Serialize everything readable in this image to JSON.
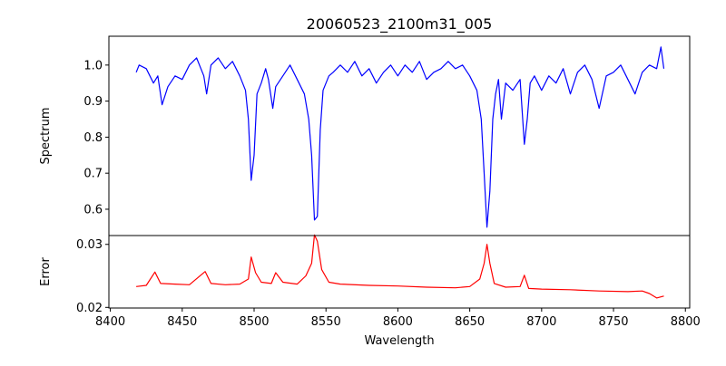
{
  "chart_data": [
    {
      "type": "line",
      "title": "20060523_2100m31_005",
      "xlabel": "",
      "ylabel": "Spectrum",
      "xlim": [
        8399,
        8803
      ],
      "ylim": [
        0.527,
        1.08
      ],
      "yticks": [
        "0.6",
        "0.7",
        "0.8",
        "0.9",
        "1.0"
      ],
      "ytick_values": [
        0.6,
        0.7,
        0.8,
        0.9,
        1.0
      ],
      "color": "#0000ff",
      "x": [
        8418,
        8420,
        8425,
        8430,
        8433,
        8436,
        8440,
        8445,
        8450,
        8455,
        8460,
        8465,
        8467,
        8470,
        8475,
        8480,
        8485,
        8490,
        8494,
        8496,
        8498,
        8500,
        8502,
        8505,
        8508,
        8510,
        8513,
        8515,
        8520,
        8525,
        8530,
        8535,
        8538,
        8540,
        8542,
        8544,
        8546,
        8548,
        8552,
        8555,
        8560,
        8565,
        8570,
        8575,
        8580,
        8585,
        8590,
        8595,
        8600,
        8605,
        8610,
        8615,
        8620,
        8625,
        8630,
        8635,
        8640,
        8645,
        8650,
        8655,
        8658,
        8660,
        8662,
        8664,
        8666,
        8668,
        8670,
        8672,
        8675,
        8680,
        8685,
        8688,
        8690,
        8692,
        8695,
        8700,
        8705,
        8710,
        8715,
        8720,
        8725,
        8730,
        8735,
        8740,
        8745,
        8750,
        8755,
        8760,
        8765,
        8770,
        8775,
        8780,
        8783,
        8785
      ],
      "y": [
        0.98,
        1.0,
        0.99,
        0.95,
        0.97,
        0.89,
        0.94,
        0.97,
        0.96,
        1.0,
        1.02,
        0.97,
        0.92,
        1.0,
        1.02,
        0.99,
        1.01,
        0.97,
        0.93,
        0.85,
        0.68,
        0.75,
        0.92,
        0.95,
        0.99,
        0.96,
        0.88,
        0.94,
        0.97,
        1.0,
        0.96,
        0.92,
        0.85,
        0.75,
        0.57,
        0.58,
        0.82,
        0.93,
        0.97,
        0.98,
        1.0,
        0.98,
        1.01,
        0.97,
        0.99,
        0.95,
        0.98,
        1.0,
        0.97,
        1.0,
        0.98,
        1.01,
        0.96,
        0.98,
        0.99,
        1.01,
        0.99,
        1.0,
        0.97,
        0.93,
        0.85,
        0.7,
        0.55,
        0.65,
        0.85,
        0.92,
        0.96,
        0.85,
        0.95,
        0.93,
        0.96,
        0.78,
        0.85,
        0.95,
        0.97,
        0.93,
        0.97,
        0.95,
        0.99,
        0.92,
        0.98,
        1.0,
        0.96,
        0.88,
        0.97,
        0.98,
        1.0,
        0.96,
        0.92,
        0.98,
        1.0,
        0.99,
        1.05,
        0.99
      ]
    },
    {
      "type": "line",
      "title": "",
      "xlabel": "Wavelength",
      "ylabel": "Error",
      "xlim": [
        8399,
        8803
      ],
      "ylim": [
        0.0199,
        0.0314
      ],
      "xticks": [
        "8400",
        "8450",
        "8500",
        "8550",
        "8600",
        "8650",
        "8700",
        "8750",
        "8800"
      ],
      "xtick_values": [
        8400,
        8450,
        8500,
        8550,
        8600,
        8650,
        8700,
        8750,
        8800
      ],
      "yticks": [
        "0.02",
        "0.03"
      ],
      "ytick_values": [
        0.02,
        0.03
      ],
      "color": "#ff0000",
      "x": [
        8418,
        8425,
        8431,
        8435,
        8445,
        8455,
        8466,
        8470,
        8480,
        8490,
        8496,
        8498,
        8501,
        8505,
        8512,
        8515,
        8520,
        8530,
        8536,
        8540,
        8542,
        8544,
        8547,
        8552,
        8560,
        8580,
        8600,
        8620,
        8640,
        8650,
        8657,
        8660,
        8662,
        8664,
        8667,
        8675,
        8685,
        8688,
        8691,
        8700,
        8720,
        8740,
        8760,
        8770,
        8775,
        8780,
        8785
      ],
      "y": [
        0.0233,
        0.0235,
        0.0256,
        0.0238,
        0.0237,
        0.0236,
        0.0257,
        0.0238,
        0.0236,
        0.0237,
        0.0245,
        0.028,
        0.0255,
        0.024,
        0.0238,
        0.0255,
        0.024,
        0.0237,
        0.025,
        0.027,
        0.0315,
        0.0305,
        0.026,
        0.024,
        0.0237,
        0.0235,
        0.0234,
        0.0232,
        0.0231,
        0.0233,
        0.0245,
        0.027,
        0.03,
        0.027,
        0.0238,
        0.0232,
        0.0233,
        0.0251,
        0.023,
        0.0229,
        0.0228,
        0.0226,
        0.0225,
        0.0226,
        0.0222,
        0.0215,
        0.0218
      ]
    }
  ]
}
